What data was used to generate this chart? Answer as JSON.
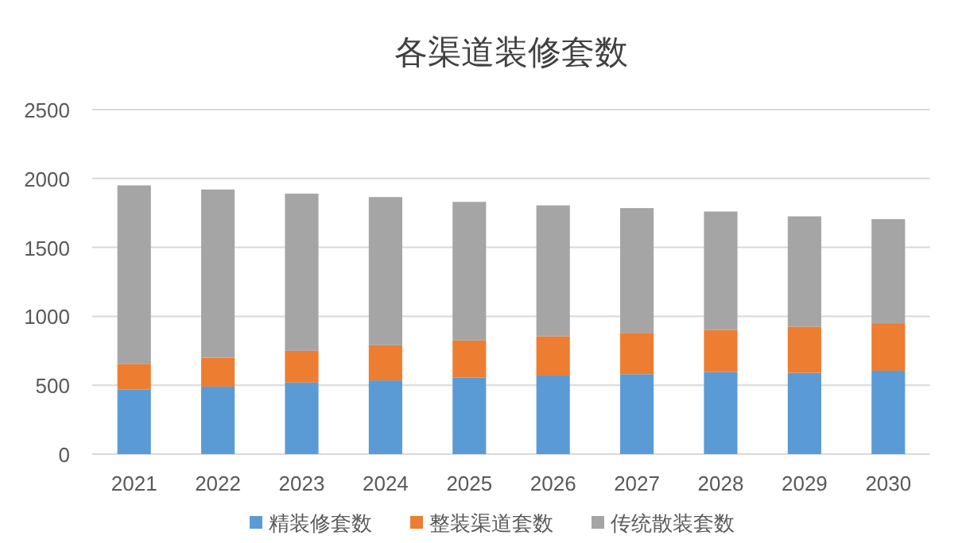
{
  "chart_data": {
    "type": "bar",
    "title": "各渠道装修套数",
    "stacked": true,
    "categories": [
      "2021",
      "2022",
      "2023",
      "2024",
      "2025",
      "2026",
      "2027",
      "2028",
      "2029",
      "2030"
    ],
    "series": [
      {
        "name": "精装修套数",
        "color": "#5b9bd5",
        "values": [
          470,
          490,
          520,
          535,
          555,
          570,
          580,
          595,
          590,
          605
        ]
      },
      {
        "name": "整装渠道套数",
        "color": "#ed7d31",
        "values": [
          185,
          210,
          230,
          255,
          270,
          285,
          300,
          305,
          335,
          345
        ]
      },
      {
        "name": "传统散装套数",
        "color": "#a5a5a5",
        "values": [
          1295,
          1220,
          1140,
          1075,
          1005,
          950,
          905,
          860,
          800,
          755
        ]
      }
    ],
    "ylim": [
      0,
      2500
    ],
    "yticks": [
      0,
      500,
      1000,
      1500,
      2000,
      2500
    ],
    "grid": "y",
    "legend": "bottom"
  }
}
